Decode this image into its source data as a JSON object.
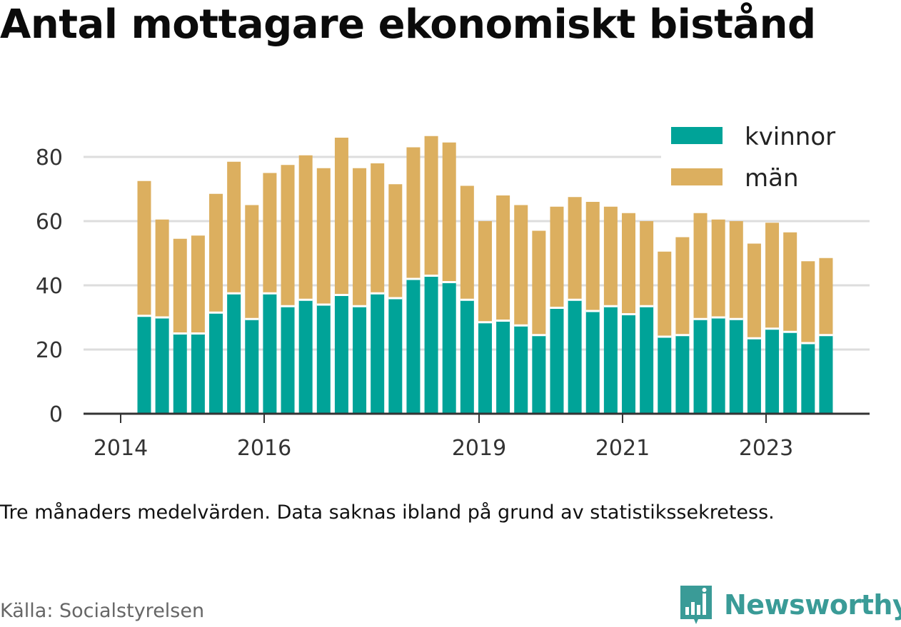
{
  "title": "Antal mottagare ekonomiskt bistånd",
  "note": "Tre månaders medelvärden. Data saknas ibland på grund av statistikssekretess.",
  "source": "Källa: Socialstyrelsen",
  "brand": {
    "name": "Newsworthy",
    "icon": "newsworthy-logo-icon",
    "color": "#3a9b97"
  },
  "colors": {
    "kvinnor": "#00a398",
    "man": "#dcaf5f",
    "grid": "#dddddd",
    "axis": "#333333"
  },
  "chart_data": {
    "type": "bar",
    "stacked": true,
    "ylim": [
      0,
      90
    ],
    "yticks": [
      0,
      20,
      40,
      60,
      80
    ],
    "xtick_labels": [
      "2014",
      "2016",
      "2019",
      "2021",
      "2023"
    ],
    "grid": true,
    "legend_position": "top-right",
    "series": [
      {
        "name": "kvinnor",
        "values": [
          30.5,
          30,
          25,
          25,
          31.5,
          37.5,
          29.5,
          37.5,
          33.5,
          35.5,
          34,
          37,
          33.5,
          37.5,
          36,
          42,
          43,
          41,
          35.5,
          28.5,
          29,
          27.5,
          24.5,
          33,
          35.5,
          32,
          33.5,
          31,
          33.5,
          24,
          24.5,
          29.5,
          30,
          29.5,
          23.5,
          26.5,
          25.5,
          22,
          24.5
        ]
      },
      {
        "name": "män",
        "values": [
          42,
          30.5,
          29.5,
          30.5,
          37,
          41,
          35.5,
          37.5,
          44,
          45,
          42.5,
          49,
          43,
          40.5,
          35.5,
          41,
          43.5,
          43.5,
          35.5,
          31.5,
          39,
          37.5,
          32.5,
          31.5,
          32,
          34,
          31,
          31.5,
          26.5,
          26.5,
          30.5,
          33,
          30.5,
          30.5,
          29.5,
          33,
          31,
          25.5,
          24
        ]
      }
    ]
  }
}
